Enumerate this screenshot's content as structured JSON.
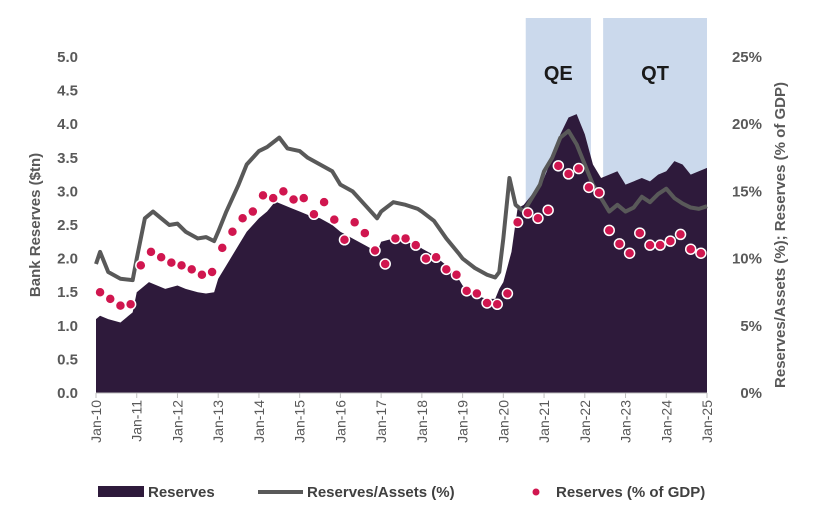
{
  "colors": {
    "reserves_fill": "#2E1A3B",
    "ratio_line": "#595959",
    "gdp_dots": "#D0164F",
    "band": "#A9C0E0",
    "tick_text": "#595959"
  },
  "chart_data": {
    "type": "area",
    "title": "",
    "xlabel": "",
    "ylabel": "Bank Reserves ($tn)",
    "y2label": "Reserves/Assets (%); Reserves (% of GDP)",
    "ylim": [
      0,
      5.0
    ],
    "y2lim": [
      0,
      25
    ],
    "xlim": [
      2010.0,
      2025.0
    ],
    "y_ticks": [
      "0.0",
      "0.5",
      "1.0",
      "1.5",
      "2.0",
      "2.5",
      "3.0",
      "3.5",
      "4.0",
      "4.5",
      "5.0"
    ],
    "y2_ticks": [
      "0%",
      "5%",
      "10%",
      "15%",
      "20%",
      "25%"
    ],
    "x_ticks": [
      "Jan-10",
      "Jan-11",
      "Jan-12",
      "Jan-13",
      "Jan-14",
      "Jan-15",
      "Jan-16",
      "Jan-17",
      "Jan-18",
      "Jan-19",
      "Jan-20",
      "Jan-21",
      "Jan-22",
      "Jan-23",
      "Jan-24",
      "Jan-25"
    ],
    "shaded_periods": [
      {
        "label": "QE",
        "start": 2020.55,
        "end": 2022.15
      },
      {
        "label": "QT",
        "start": 2022.45,
        "end": 2025.0
      }
    ],
    "legend": [
      "Reserves",
      "Reserves/Assets (%)",
      "Reserves (% of GDP)"
    ],
    "series": [
      {
        "name": "Reserves",
        "axis": "left",
        "kind": "area",
        "x": [
          2010.0,
          2010.1,
          2010.3,
          2010.6,
          2010.9,
          2011.0,
          2011.2,
          2011.3,
          2011.5,
          2011.7,
          2012.0,
          2012.2,
          2012.5,
          2012.7,
          2012.9,
          2013.0,
          2013.2,
          2013.5,
          2013.7,
          2014.0,
          2014.2,
          2014.4,
          2014.6,
          2014.8,
          2015.0,
          2015.2,
          2015.5,
          2015.8,
          2016.0,
          2016.3,
          2016.6,
          2016.9,
          2017.0,
          2017.3,
          2017.6,
          2017.9,
          2018.0,
          2018.3,
          2018.6,
          2018.9,
          2019.0,
          2019.3,
          2019.6,
          2019.8,
          2019.9,
          2020.0,
          2020.2,
          2020.35,
          2020.5,
          2020.7,
          2020.9,
          2021.0,
          2021.2,
          2021.4,
          2021.6,
          2021.8,
          2021.9,
          2022.0,
          2022.2,
          2022.4,
          2022.6,
          2022.8,
          2023.0,
          2023.2,
          2023.4,
          2023.6,
          2023.8,
          2024.0,
          2024.2,
          2024.4,
          2024.6,
          2024.8,
          2025.0
        ],
        "values": [
          1.1,
          1.15,
          1.1,
          1.05,
          1.2,
          1.5,
          1.6,
          1.65,
          1.6,
          1.55,
          1.6,
          1.55,
          1.5,
          1.48,
          1.5,
          1.7,
          1.9,
          2.2,
          2.4,
          2.6,
          2.7,
          2.85,
          2.8,
          2.75,
          2.7,
          2.65,
          2.6,
          2.5,
          2.4,
          2.3,
          2.2,
          2.1,
          2.25,
          2.3,
          2.25,
          2.2,
          2.15,
          2.05,
          1.9,
          1.7,
          1.6,
          1.45,
          1.4,
          1.4,
          1.55,
          1.65,
          2.1,
          2.75,
          2.8,
          2.95,
          3.05,
          3.2,
          3.5,
          3.85,
          4.1,
          4.15,
          4.0,
          3.85,
          3.4,
          3.2,
          3.25,
          3.3,
          3.1,
          3.15,
          3.2,
          3.15,
          3.25,
          3.3,
          3.45,
          3.4,
          3.25,
          3.3,
          3.35
        ]
      },
      {
        "name": "Reserves/Assets (%)",
        "axis": "right",
        "kind": "line",
        "x": [
          2010.0,
          2010.1,
          2010.3,
          2010.6,
          2010.9,
          2011.0,
          2011.2,
          2011.4,
          2011.6,
          2011.8,
          2012.0,
          2012.2,
          2012.5,
          2012.7,
          2012.9,
          2013.0,
          2013.2,
          2013.5,
          2013.7,
          2014.0,
          2014.2,
          2014.5,
          2014.7,
          2015.0,
          2015.2,
          2015.5,
          2015.8,
          2016.0,
          2016.3,
          2016.6,
          2016.9,
          2017.0,
          2017.3,
          2017.6,
          2017.9,
          2018.0,
          2018.3,
          2018.6,
          2018.9,
          2019.0,
          2019.3,
          2019.6,
          2019.8,
          2019.9,
          2020.0,
          2020.15,
          2020.3,
          2020.5,
          2020.7,
          2020.9,
          2021.0,
          2021.2,
          2021.4,
          2021.6,
          2021.8,
          2022.0,
          2022.2,
          2022.4,
          2022.6,
          2022.8,
          2023.0,
          2023.2,
          2023.4,
          2023.6,
          2023.8,
          2024.0,
          2024.2,
          2024.4,
          2024.6,
          2024.8,
          2025.0
        ],
        "values": [
          9.6,
          10.5,
          9.0,
          8.5,
          8.4,
          10.0,
          13.0,
          13.5,
          13.0,
          12.5,
          12.6,
          12.0,
          11.5,
          11.6,
          11.3,
          12.0,
          13.5,
          15.5,
          17.0,
          18.0,
          18.3,
          19.0,
          18.2,
          18.0,
          17.5,
          17.0,
          16.5,
          15.5,
          15.0,
          14.0,
          13.0,
          13.5,
          14.2,
          14.0,
          13.7,
          13.5,
          12.8,
          11.5,
          10.4,
          10.0,
          9.3,
          8.8,
          8.6,
          9.0,
          11.5,
          16.0,
          14.0,
          13.5,
          14.5,
          15.5,
          16.5,
          17.5,
          19.0,
          19.5,
          18.5,
          17.0,
          15.5,
          14.5,
          13.5,
          14.0,
          13.5,
          13.8,
          14.6,
          14.2,
          14.8,
          15.2,
          14.5,
          14.1,
          13.8,
          13.7,
          13.9
        ]
      },
      {
        "name": "Reserves (% of GDP)",
        "axis": "right",
        "kind": "dots",
        "x": [
          2010.1,
          2010.35,
          2010.6,
          2010.85,
          2011.1,
          2011.35,
          2011.6,
          2011.85,
          2012.1,
          2012.35,
          2012.6,
          2012.85,
          2013.1,
          2013.35,
          2013.6,
          2013.85,
          2014.1,
          2014.35,
          2014.6,
          2014.85,
          2015.1,
          2015.35,
          2015.6,
          2015.85,
          2016.1,
          2016.35,
          2016.6,
          2016.85,
          2017.1,
          2017.35,
          2017.6,
          2017.85,
          2018.1,
          2018.35,
          2018.6,
          2018.85,
          2019.1,
          2019.35,
          2019.6,
          2019.85,
          2020.1,
          2020.35,
          2020.6,
          2020.85,
          2021.1,
          2021.35,
          2021.6,
          2021.85,
          2022.1,
          2022.35,
          2022.6,
          2022.85,
          2023.1,
          2023.35,
          2023.6,
          2023.85,
          2024.1,
          2024.35,
          2024.6,
          2024.85
        ],
        "values": [
          7.5,
          7.0,
          6.5,
          6.6,
          9.5,
          10.5,
          10.1,
          9.7,
          9.5,
          9.2,
          8.8,
          9.0,
          10.8,
          12.0,
          13.0,
          13.5,
          14.7,
          14.5,
          15.0,
          14.4,
          14.5,
          13.3,
          14.2,
          12.9,
          11.4,
          12.7,
          11.9,
          10.6,
          9.6,
          11.5,
          11.5,
          11.0,
          10.0,
          10.1,
          9.2,
          8.8,
          7.6,
          7.4,
          6.7,
          6.6,
          7.4,
          12.7,
          13.4,
          13.0,
          13.6,
          16.9,
          16.3,
          16.7,
          15.3,
          14.9,
          12.1,
          11.1,
          10.4,
          11.9,
          11.0,
          11.0,
          11.3,
          11.8,
          10.7,
          10.4
        ]
      }
    ]
  }
}
